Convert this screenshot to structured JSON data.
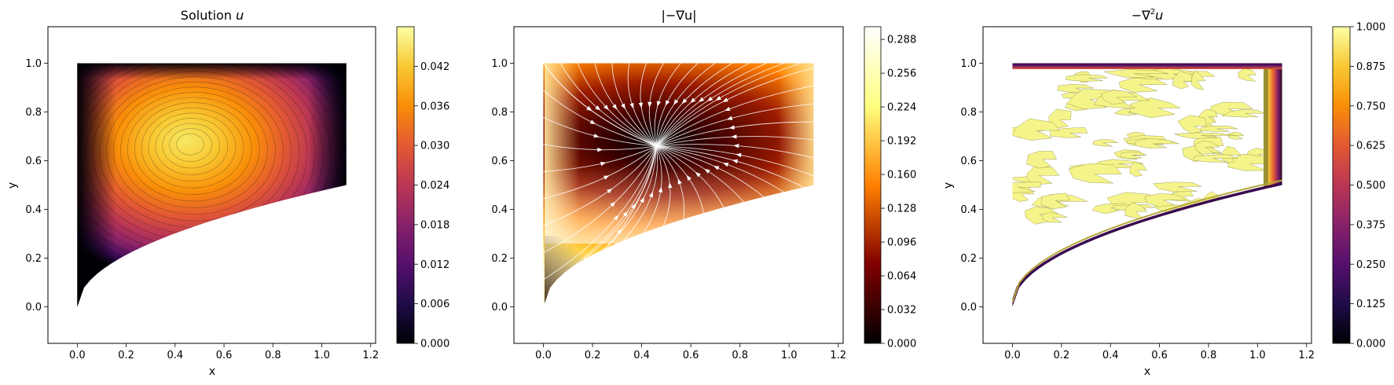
{
  "colors": {
    "inferno": [
      "#000004",
      "#1f0c48",
      "#550f6d",
      "#88226a",
      "#ba3655",
      "#e35933",
      "#f98e09",
      "#f8c932",
      "#fcffa4"
    ],
    "afmhot": [
      "#000000",
      "#800000",
      "#ff8000",
      "#ffff80",
      "#ffffff"
    ],
    "streamline": "#ffffff",
    "axes": "#000000"
  },
  "chart_data": [
    {
      "type": "heatmap",
      "title_text": "Solution ",
      "title_var": "u",
      "xlabel": "x",
      "ylabel": "y",
      "xlim": [
        -0.12,
        1.22
      ],
      "ylim": [
        -0.15,
        1.15
      ],
      "xticks": [
        "0.0",
        "0.2",
        "0.4",
        "0.6",
        "0.8",
        "1.0",
        "1.2"
      ],
      "yticks": [
        "0.0",
        "0.2",
        "0.4",
        "0.6",
        "0.8",
        "1.0"
      ],
      "colormap": "inferno",
      "colorbar_range": [
        0,
        0.048
      ],
      "colorbar_ticks": [
        "0.000",
        "0.006",
        "0.012",
        "0.018",
        "0.024",
        "0.030",
        "0.036",
        "0.042"
      ],
      "domain": {
        "x_range": [
          0,
          1.1
        ],
        "top": 1.0,
        "bottom_curve": "y = 0.5 (x/1.1)^0.5"
      },
      "maximum": {
        "x": 0.46,
        "y": 0.67,
        "value": 0.046
      },
      "contour_levels": 32
    },
    {
      "type": "heatmap",
      "title_text": "|−∇u|",
      "xlabel": "",
      "ylabel": "",
      "xlim": [
        -0.12,
        1.22
      ],
      "ylim": [
        -0.15,
        1.15
      ],
      "xticks": [
        "0.0",
        "0.2",
        "0.4",
        "0.6",
        "0.8",
        "1.0",
        "1.2"
      ],
      "yticks": [
        "0.0",
        "0.2",
        "0.4",
        "0.6",
        "0.8",
        "1.0"
      ],
      "colormap": "afmhot",
      "colorbar_range": [
        0,
        0.3
      ],
      "colorbar_ticks": [
        "0.000",
        "0.032",
        "0.064",
        "0.096",
        "0.128",
        "0.160",
        "0.192",
        "0.224",
        "0.256",
        "0.288"
      ],
      "streamlines": true
    },
    {
      "type": "heatmap",
      "title_text": "−∇",
      "title_sup": "2",
      "title_var": "u",
      "xlabel": "x",
      "ylabel": "y",
      "xlim": [
        -0.12,
        1.22
      ],
      "ylim": [
        -0.15,
        1.15
      ],
      "xticks": [
        "0.0",
        "0.2",
        "0.4",
        "0.6",
        "0.8",
        "1.0",
        "1.2"
      ],
      "yticks": [
        "0.0",
        "0.2",
        "0.4",
        "0.6",
        "0.8",
        "1.0"
      ],
      "colormap": "inferno",
      "colorbar_range": [
        0,
        1.0
      ],
      "colorbar_ticks": [
        "0.000",
        "0.125",
        "0.250",
        "0.375",
        "0.500",
        "0.625",
        "0.750",
        "0.875",
        "1.000"
      ],
      "interior_value": 1.0
    }
  ]
}
